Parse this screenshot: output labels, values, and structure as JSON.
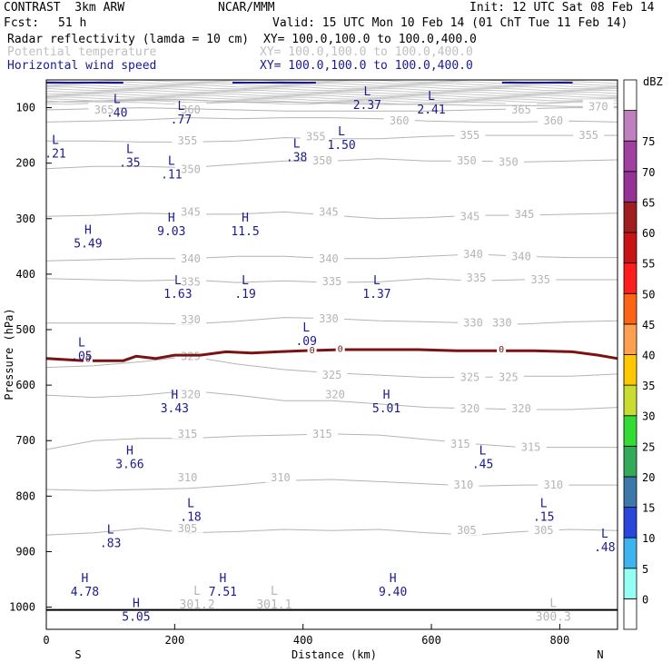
{
  "header": {
    "model": "CONTRAST  3km ARW",
    "org": "NCAR/MMM",
    "init": "Init: 12 UTC Sat 08 Feb 14",
    "fcst_label": "Fcst:",
    "fcst_value": "51 h",
    "valid": "Valid: 15 UTC Mon 10 Feb 14 (01 ChT Tue 11 Feb 14)",
    "fields": [
      {
        "name": "Radar reflectivity (lamda = 10 cm)",
        "xy": "XY= 100.0,100.0 to 100.0,400.0",
        "color": "#000000"
      },
      {
        "name": "Potential temperature",
        "xy": "XY= 100.0,100.0 to 100.0,400.0",
        "color": "#c0c0c0"
      },
      {
        "name": "Horizontal wind speed",
        "xy": "XY= 100.0,100.0 to 100.0,400.0",
        "color": "#1a1a8c"
      }
    ]
  },
  "chart_data": {
    "type": "cross-section",
    "xlabel": "Distance (km)",
    "ylabel": "Pressure (hPa)",
    "xlim": [
      0,
      890
    ],
    "ylim": [
      1040,
      50
    ],
    "x_ticks": [
      0,
      200,
      400,
      600,
      800
    ],
    "y_ticks": [
      100,
      200,
      300,
      400,
      500,
      600,
      700,
      800,
      900,
      1000
    ],
    "end_labels": {
      "left": "S",
      "right": "N"
    },
    "colorbar": {
      "unit": "dBZ",
      "levels": [
        0,
        5,
        10,
        15,
        20,
        25,
        30,
        35,
        40,
        45,
        50,
        55,
        60,
        65,
        70,
        75
      ],
      "colors": [
        "#ffffff",
        "#96fff5",
        "#3cb4f0",
        "#2846dc",
        "#3c78aa",
        "#32aa5a",
        "#32dc32",
        "#c8dc32",
        "#ffc800",
        "#ffa050",
        "#ff6414",
        "#ff1e1e",
        "#c81414",
        "#a01e1e",
        "#963296",
        "#a040a0",
        "#c080c0",
        "#ffffff"
      ]
    },
    "theta_contours": [
      {
        "value": 305,
        "p": [
          870,
          866,
          858,
          866,
          864,
          860,
          862,
          860,
          866,
          870,
          864,
          860,
          862
        ],
        "labels": [
          {
            "x": 220,
            "p": 858
          },
          {
            "x": 655,
            "p": 862
          },
          {
            "x": 775,
            "p": 862
          }
        ]
      },
      {
        "value": 310,
        "p": [
          788,
          790,
          788,
          786,
          780,
          772,
          770,
          774,
          778,
          782,
          780,
          780,
          780
        ],
        "labels": [
          {
            "x": 220,
            "p": 767
          },
          {
            "x": 365,
            "p": 767
          },
          {
            "x": 650,
            "p": 780
          },
          {
            "x": 790,
            "p": 780
          }
        ]
      },
      {
        "value": 315,
        "p": [
          716,
          700,
          696,
          696,
          692,
          690,
          688,
          690,
          698,
          706,
          712,
          712,
          712
        ],
        "labels": [
          {
            "x": 220,
            "p": 688
          },
          {
            "x": 430,
            "p": 688
          },
          {
            "x": 645,
            "p": 706
          },
          {
            "x": 755,
            "p": 712
          }
        ]
      },
      {
        "value": 320,
        "p": [
          618,
          622,
          618,
          610,
          618,
          628,
          628,
          634,
          640,
          642,
          644,
          644,
          640
        ],
        "labels": [
          {
            "x": 225,
            "p": 617
          },
          {
            "x": 450,
            "p": 617
          },
          {
            "x": 660,
            "p": 642
          },
          {
            "x": 740,
            "p": 642
          }
        ]
      },
      {
        "value": 325,
        "p": [
          568,
          565,
          558,
          548,
          562,
          572,
          578,
          582,
          586,
          586,
          584,
          584,
          580
        ],
        "labels": [
          {
            "x": 225,
            "p": 548
          },
          {
            "x": 445,
            "p": 582
          },
          {
            "x": 660,
            "p": 586
          },
          {
            "x": 720,
            "p": 586
          }
        ]
      },
      {
        "value": 330,
        "p": [
          488,
          488,
          488,
          490,
          485,
          478,
          480,
          484,
          486,
          488,
          490,
          486,
          484
        ],
        "labels": [
          {
            "x": 225,
            "p": 482
          },
          {
            "x": 440,
            "p": 480
          },
          {
            "x": 665,
            "p": 488
          },
          {
            "x": 710,
            "p": 488
          }
        ]
      },
      {
        "value": 335,
        "p": [
          408,
          410,
          412,
          410,
          415,
          412,
          415,
          414,
          408,
          412,
          410,
          410,
          410
        ],
        "labels": [
          {
            "x": 225,
            "p": 414
          },
          {
            "x": 445,
            "p": 413
          },
          {
            "x": 670,
            "p": 407
          },
          {
            "x": 770,
            "p": 410
          }
        ]
      },
      {
        "value": 340,
        "p": [
          376,
          374,
          372,
          372,
          368,
          368,
          372,
          372,
          368,
          364,
          368,
          370,
          370
        ],
        "labels": [
          {
            "x": 225,
            "p": 372
          },
          {
            "x": 440,
            "p": 372
          },
          {
            "x": 665,
            "p": 364
          },
          {
            "x": 740,
            "p": 368
          }
        ]
      },
      {
        "value": 345,
        "p": [
          296,
          294,
          290,
          292,
          292,
          288,
          294,
          300,
          298,
          294,
          294,
          292,
          290
        ],
        "labels": [
          {
            "x": 225,
            "p": 288
          },
          {
            "x": 440,
            "p": 288
          },
          {
            "x": 660,
            "p": 296
          },
          {
            "x": 745,
            "p": 292
          }
        ]
      },
      {
        "value": 350,
        "p": [
          210,
          206,
          206,
          208,
          202,
          196,
          196,
          192,
          196,
          196,
          198,
          196,
          194
        ],
        "labels": [
          {
            "x": 225,
            "p": 211
          },
          {
            "x": 430,
            "p": 196
          },
          {
            "x": 655,
            "p": 196
          },
          {
            "x": 720,
            "p": 198
          }
        ]
      },
      {
        "value": 355,
        "p": [
          160,
          160,
          162,
          162,
          160,
          154,
          156,
          156,
          152,
          150,
          150,
          150,
          150
        ],
        "labels": [
          {
            "x": 220,
            "p": 160
          },
          {
            "x": 420,
            "p": 152
          },
          {
            "x": 660,
            "p": 150
          },
          {
            "x": 845,
            "p": 150
          }
        ]
      },
      {
        "value": 360,
        "p": [
          126,
          124,
          122,
          118,
          120,
          118,
          118,
          120,
          124,
          126,
          126,
          124,
          126
        ],
        "labels": [
          {
            "x": 225,
            "p": 104
          },
          {
            "x": 550,
            "p": 124
          },
          {
            "x": 790,
            "p": 124
          }
        ]
      },
      {
        "value": 365,
        "p": [
          104,
          102,
          100,
          102,
          104,
          106,
          106,
          106,
          106,
          104,
          102,
          100,
          100
        ],
        "labels": [
          {
            "x": 90,
            "p": 104
          },
          {
            "x": 740,
            "p": 104
          }
        ]
      },
      {
        "value": 370,
        "p": [
          90,
          88,
          86,
          86,
          90,
          90,
          92,
          94,
          94,
          96,
          96,
          98,
          98
        ],
        "labels": [
          {
            "x": 860,
            "p": 98
          }
        ]
      }
    ],
    "stacked_contour_top": [
      52,
      92
    ],
    "refl_zero_contour": {
      "x": [
        0,
        60,
        120,
        140,
        170,
        200,
        240,
        280,
        320,
        360,
        400,
        460,
        520,
        580,
        640,
        700,
        760,
        820,
        860,
        890
      ],
      "p": [
        552,
        556,
        556,
        548,
        552,
        546,
        546,
        540,
        542,
        540,
        538,
        536,
        536,
        536,
        538,
        538,
        538,
        540,
        546,
        552
      ]
    },
    "refl_zero_labels": [
      {
        "x": 65,
        "p": 553
      },
      {
        "x": 414,
        "p": 538
      },
      {
        "x": 458,
        "p": 535
      },
      {
        "x": 709,
        "p": 536
      }
    ],
    "wind_extrema": [
      {
        "kind": "L",
        "value": ".40",
        "x": 110,
        "p": 92
      },
      {
        "kind": "L",
        "value": ".77",
        "x": 210,
        "p": 104
      },
      {
        "kind": "L",
        "value": "2.37",
        "x": 500,
        "p": 78
      },
      {
        "kind": "L",
        "value": "2.41",
        "x": 600,
        "p": 86
      },
      {
        "kind": "L",
        "value": ".21",
        "x": 0,
        "p": 165
      },
      {
        "kind": "L",
        "value": ".35",
        "x": 130,
        "p": 182
      },
      {
        "kind": "L",
        "value": ".11",
        "x": 195,
        "p": 203
      },
      {
        "kind": "L",
        "value": ".38",
        "x": 390,
        "p": 172
      },
      {
        "kind": "L",
        "value": "1.50",
        "x": 460,
        "p": 150
      },
      {
        "kind": "H",
        "value": "5.49",
        "x": 65,
        "p": 327
      },
      {
        "kind": "H",
        "value": "9.03",
        "x": 195,
        "p": 305
      },
      {
        "kind": "H",
        "value": "11.5",
        "x": 310,
        "p": 305
      },
      {
        "kind": "L",
        "value": "1.63",
        "x": 205,
        "p": 418
      },
      {
        "kind": "L",
        "value": ".19",
        "x": 310,
        "p": 418
      },
      {
        "kind": "L",
        "value": "1.37",
        "x": 515,
        "p": 418
      },
      {
        "kind": "L",
        "value": ".09",
        "x": 405,
        "p": 503
      },
      {
        "kind": "L",
        "value": ".05",
        "x": 55,
        "p": 530
      },
      {
        "kind": "H",
        "value": "3.43",
        "x": 200,
        "p": 624
      },
      {
        "kind": "H",
        "value": "5.01",
        "x": 530,
        "p": 624
      },
      {
        "kind": "H",
        "value": "3.66",
        "x": 130,
        "p": 725
      },
      {
        "kind": "L",
        "value": ".45",
        "x": 680,
        "p": 725
      },
      {
        "kind": "L",
        "value": ".18",
        "x": 225,
        "p": 820
      },
      {
        "kind": "L",
        "value": ".15",
        "x": 775,
        "p": 820
      },
      {
        "kind": "L",
        "value": ".83",
        "x": 100,
        "p": 867
      },
      {
        "kind": "L",
        "value": ".48",
        "x": 870,
        "p": 875
      },
      {
        "kind": "H",
        "value": "4.78",
        "x": 60,
        "p": 955
      },
      {
        "kind": "H",
        "value": "7.51",
        "x": 275,
        "p": 955
      },
      {
        "kind": "H",
        "value": "9.40",
        "x": 540,
        "p": 955
      },
      {
        "kind": "H",
        "value": "5.05",
        "x": 140,
        "p": 1000
      }
    ],
    "theta_extrema": [
      {
        "kind": "L",
        "value": "301.2",
        "x": 235,
        "p": 978
      },
      {
        "kind": "L",
        "value": "301.1",
        "x": 355,
        "p": 978
      },
      {
        "kind": "L",
        "value": "300.3",
        "x": 790,
        "p": 1000
      }
    ],
    "ground_p": 1005
  }
}
